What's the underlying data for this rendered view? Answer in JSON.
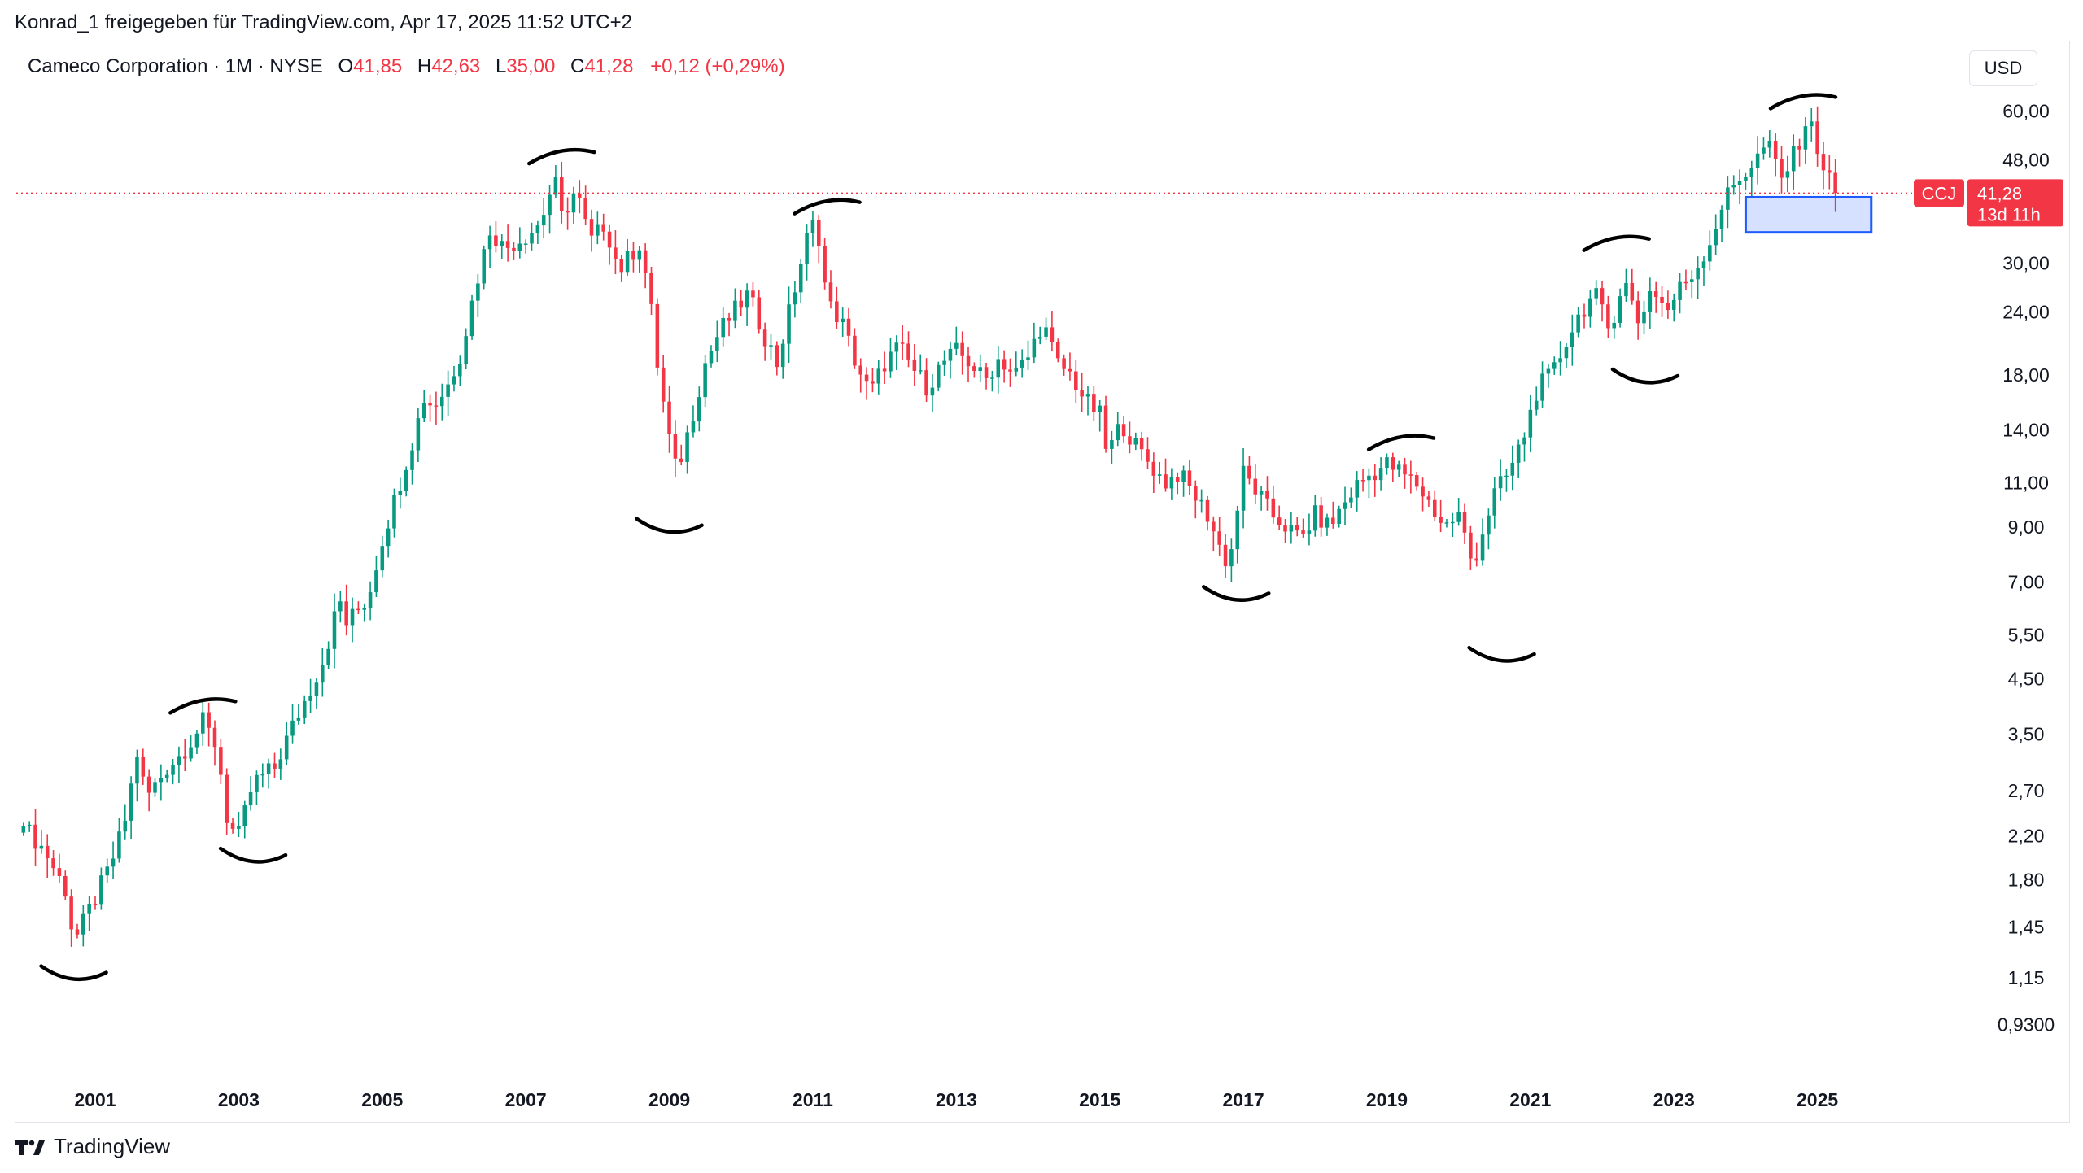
{
  "attribution": "Konrad_1 freigegeben für TradingView.com, Apr 17, 2025 11:52 UTC+2",
  "legend": {
    "symbol": "Cameco Corporation · 1M · NYSE",
    "open_label": "O",
    "open": "41,85",
    "high_label": "H",
    "high": "42,63",
    "low_label": "L",
    "low": "35,00",
    "close_label": "C",
    "close": "41,28",
    "change": "+0,12 (+0,29%)"
  },
  "currency_button": "USD",
  "brand": "TradingView",
  "colors": {
    "up": "#089981",
    "down": "#f23645",
    "zone": "#1e5bff",
    "annotation": "#000000"
  },
  "chart_data": {
    "type": "candlestick",
    "scale": "log",
    "ticker": "CCJ",
    "interval": "1M",
    "ylim": [
      0.8,
      70
    ],
    "xlim": [
      1999.9,
      2027.0
    ],
    "y_ticks": [
      {
        "v": 60,
        "label": "60,00"
      },
      {
        "v": 48,
        "label": "48,00"
      },
      {
        "v": 30,
        "label": "30,00"
      },
      {
        "v": 24,
        "label": "24,00"
      },
      {
        "v": 18,
        "label": "18,00"
      },
      {
        "v": 14,
        "label": "14,00"
      },
      {
        "v": 11,
        "label": "11,00"
      },
      {
        "v": 9,
        "label": "9,00"
      },
      {
        "v": 7,
        "label": "7,00"
      },
      {
        "v": 5.5,
        "label": "5,50"
      },
      {
        "v": 4.5,
        "label": "4,50"
      },
      {
        "v": 3.5,
        "label": "3,50"
      },
      {
        "v": 2.7,
        "label": "2,70"
      },
      {
        "v": 2.2,
        "label": "2,20"
      },
      {
        "v": 1.8,
        "label": "1,80"
      },
      {
        "v": 1.45,
        "label": "1,45"
      },
      {
        "v": 1.15,
        "label": "1,15"
      },
      {
        "v": 0.93,
        "label": "0,9300"
      }
    ],
    "x_ticks": [
      {
        "t": 2001,
        "label": "2001"
      },
      {
        "t": 2003,
        "label": "2003"
      },
      {
        "t": 2005,
        "label": "2005"
      },
      {
        "t": 2007,
        "label": "2007"
      },
      {
        "t": 2009,
        "label": "2009"
      },
      {
        "t": 2011,
        "label": "2011"
      },
      {
        "t": 2013,
        "label": "2013"
      },
      {
        "t": 2015,
        "label": "2015"
      },
      {
        "t": 2017,
        "label": "2017"
      },
      {
        "t": 2019,
        "label": "2019"
      },
      {
        "t": 2021,
        "label": "2021"
      },
      {
        "t": 2023,
        "label": "2023"
      },
      {
        "t": 2025,
        "label": "2025"
      }
    ],
    "last_price": {
      "value": 41.28,
      "label": "41,28",
      "countdown": "13d 11h"
    },
    "zone": {
      "t0": 2024.0,
      "t1": 2025.75,
      "low": 34.5,
      "high": 40.5
    },
    "anchors": [
      [
        2000.0,
        2.3
      ],
      [
        2000.3,
        2.05
      ],
      [
        2000.6,
        1.7
      ],
      [
        2000.7,
        1.35
      ],
      [
        2000.9,
        1.55
      ],
      [
        2001.2,
        1.9
      ],
      [
        2001.4,
        2.3
      ],
      [
        2001.6,
        3.3
      ],
      [
        2001.7,
        2.6
      ],
      [
        2002.0,
        3.0
      ],
      [
        2002.2,
        3.2
      ],
      [
        2002.4,
        3.5
      ],
      [
        2002.5,
        3.7
      ],
      [
        2002.7,
        3.3
      ],
      [
        2002.85,
        2.3
      ],
      [
        2003.0,
        2.2
      ],
      [
        2003.2,
        2.8
      ],
      [
        2003.5,
        3.0
      ],
      [
        2003.7,
        3.5
      ],
      [
        2004.0,
        4.3
      ],
      [
        2004.2,
        5.0
      ],
      [
        2004.4,
        6.5
      ],
      [
        2004.5,
        5.8
      ],
      [
        2004.8,
        6.5
      ],
      [
        2005.0,
        8.5
      ],
      [
        2005.2,
        10.5
      ],
      [
        2005.4,
        13.0
      ],
      [
        2005.6,
        16.5
      ],
      [
        2005.7,
        15.5
      ],
      [
        2005.9,
        17.0
      ],
      [
        2006.1,
        20.0
      ],
      [
        2006.3,
        27.0
      ],
      [
        2006.5,
        35.0
      ],
      [
        2006.7,
        32.0
      ],
      [
        2007.0,
        34.0
      ],
      [
        2007.2,
        36.0
      ],
      [
        2007.4,
        44.0
      ],
      [
        2007.5,
        37.0
      ],
      [
        2007.7,
        42.0
      ],
      [
        2007.9,
        33.0
      ],
      [
        2008.1,
        36.0
      ],
      [
        2008.3,
        29.0
      ],
      [
        2008.6,
        33.0
      ],
      [
        2008.75,
        24.0
      ],
      [
        2008.85,
        18.0
      ],
      [
        2009.0,
        13.5
      ],
      [
        2009.1,
        11.5
      ],
      [
        2009.3,
        14.5
      ],
      [
        2009.5,
        19.0
      ],
      [
        2009.7,
        22.0
      ],
      [
        2009.9,
        24.0
      ],
      [
        2010.1,
        26.0
      ],
      [
        2010.3,
        22.0
      ],
      [
        2010.5,
        19.0
      ],
      [
        2010.7,
        25.0
      ],
      [
        2010.9,
        33.0
      ],
      [
        2011.05,
        37.0
      ],
      [
        2011.2,
        25.0
      ],
      [
        2011.4,
        23.0
      ],
      [
        2011.6,
        19.0
      ],
      [
        2011.8,
        16.5
      ],
      [
        2012.0,
        19.0
      ],
      [
        2012.2,
        20.5
      ],
      [
        2012.4,
        18.5
      ],
      [
        2012.6,
        17.0
      ],
      [
        2012.8,
        19.0
      ],
      [
        2013.0,
        20.0
      ],
      [
        2013.2,
        19.0
      ],
      [
        2013.4,
        17.5
      ],
      [
        2013.6,
        19.5
      ],
      [
        2013.8,
        18.0
      ],
      [
        2014.0,
        19.5
      ],
      [
        2014.2,
        23.0
      ],
      [
        2014.4,
        19.0
      ],
      [
        2014.6,
        18.0
      ],
      [
        2014.8,
        16.0
      ],
      [
        2015.0,
        15.0
      ],
      [
        2015.1,
        12.5
      ],
      [
        2015.3,
        14.5
      ],
      [
        2015.5,
        13.0
      ],
      [
        2015.7,
        12.0
      ],
      [
        2015.9,
        11.0
      ],
      [
        2016.1,
        11.5
      ],
      [
        2016.3,
        10.5
      ],
      [
        2016.5,
        9.5
      ],
      [
        2016.7,
        8.0
      ],
      [
        2016.8,
        7.5
      ],
      [
        2016.9,
        9.5
      ],
      [
        2017.0,
        11.5
      ],
      [
        2017.2,
        10.5
      ],
      [
        2017.4,
        9.5
      ],
      [
        2017.6,
        9.0
      ],
      [
        2017.8,
        8.5
      ],
      [
        2018.0,
        9.5
      ],
      [
        2018.2,
        9.0
      ],
      [
        2018.4,
        10.0
      ],
      [
        2018.6,
        11.0
      ],
      [
        2018.8,
        11.5
      ],
      [
        2019.0,
        12.0
      ],
      [
        2019.2,
        11.5
      ],
      [
        2019.4,
        11.0
      ],
      [
        2019.6,
        10.0
      ],
      [
        2019.8,
        9.0
      ],
      [
        2020.0,
        9.5
      ],
      [
        2020.2,
        7.5
      ],
      [
        2020.3,
        8.5
      ],
      [
        2020.5,
        10.5
      ],
      [
        2020.7,
        11.5
      ],
      [
        2020.9,
        13.5
      ],
      [
        2021.1,
        17.0
      ],
      [
        2021.3,
        18.0
      ],
      [
        2021.5,
        21.0
      ],
      [
        2021.7,
        24.0
      ],
      [
        2021.9,
        26.0
      ],
      [
        2022.1,
        22.0
      ],
      [
        2022.3,
        28.0
      ],
      [
        2022.5,
        23.0
      ],
      [
        2022.7,
        27.0
      ],
      [
        2022.9,
        24.0
      ],
      [
        2023.1,
        27.0
      ],
      [
        2023.3,
        29.0
      ],
      [
        2023.5,
        33.0
      ],
      [
        2023.7,
        40.0
      ],
      [
        2023.9,
        44.0
      ],
      [
        2024.1,
        47.0
      ],
      [
        2024.3,
        52.0
      ],
      [
        2024.5,
        44.0
      ],
      [
        2024.7,
        50.0
      ],
      [
        2024.85,
        58.0
      ],
      [
        2024.95,
        54.0
      ],
      [
        2025.05,
        48.0
      ],
      [
        2025.15,
        44.0
      ],
      [
        2025.3,
        41.28
      ]
    ],
    "annotations": [
      {
        "type": "trough",
        "t": 2000.7,
        "v": 1.17
      },
      {
        "type": "peak",
        "t": 2002.5,
        "v": 4.0
      },
      {
        "type": "trough",
        "t": 2003.2,
        "v": 2.0
      },
      {
        "type": "peak",
        "t": 2007.5,
        "v": 49.0
      },
      {
        "type": "trough",
        "t": 2009.0,
        "v": 9.0
      },
      {
        "type": "peak",
        "t": 2011.2,
        "v": 39.0
      },
      {
        "type": "trough",
        "t": 2016.9,
        "v": 6.6
      },
      {
        "type": "peak",
        "t": 2019.2,
        "v": 13.3
      },
      {
        "type": "trough",
        "t": 2020.6,
        "v": 5.0
      },
      {
        "type": "peak",
        "t": 2022.2,
        "v": 33.0
      },
      {
        "type": "trough",
        "t": 2022.6,
        "v": 17.8
      },
      {
        "type": "peak",
        "t": 2024.8,
        "v": 63.0
      }
    ]
  }
}
